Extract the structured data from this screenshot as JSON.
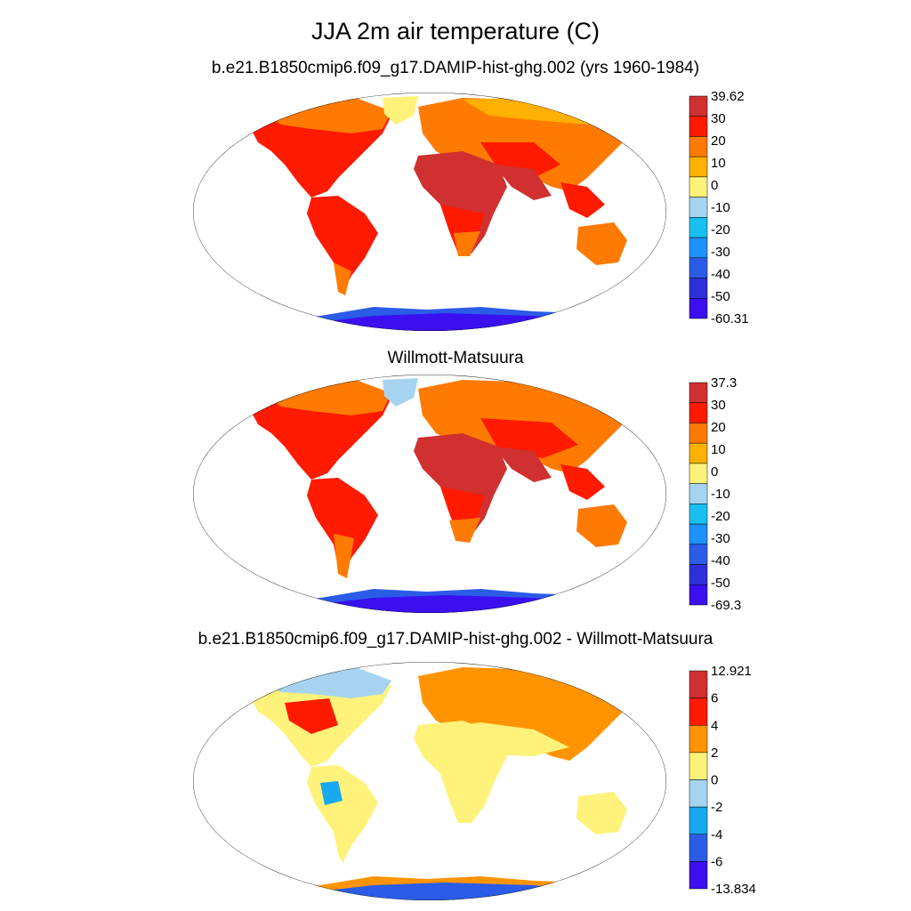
{
  "title": "JJA 2m air temperature (C)",
  "panels": [
    {
      "subtitle": "b.e21.B1850cmip6.f09_g17.DAMIP-hist-ghg.002 (yrs 1960-1984)",
      "legend": {
        "labels": [
          "39.62",
          "30",
          "20",
          "10",
          "0",
          "-10",
          "-20",
          "-30",
          "-40",
          "-50",
          "-60.31"
        ],
        "colors": [
          "#d03030",
          "#ff1a00",
          "#ff7a00",
          "#ffb000",
          "#fff27a",
          "#a6d4f0",
          "#17c0f0",
          "#1e90ff",
          "#2a5ce8",
          "#3030d8",
          "#3a10f0"
        ]
      }
    },
    {
      "subtitle": "Willmott-Matsuura",
      "legend": {
        "labels": [
          "37.3",
          "30",
          "20",
          "10",
          "0",
          "-10",
          "-20",
          "-30",
          "-40",
          "-50",
          "-69.3"
        ],
        "colors": [
          "#d03030",
          "#ff1a00",
          "#ff7a00",
          "#ffb000",
          "#fff27a",
          "#a6d4f0",
          "#17c0f0",
          "#1e90ff",
          "#2a5ce8",
          "#3030d8",
          "#3a10f0"
        ]
      }
    },
    {
      "subtitle": "b.e21.B1850cmip6.f09_g17.DAMIP-hist-ghg.002 - Willmott-Matsuura",
      "legend": {
        "labels": [
          "12.921",
          "6",
          "4",
          "2",
          "0",
          "-2",
          "-4",
          "-6",
          "-13.834"
        ],
        "colors": [
          "#d03030",
          "#ff1a00",
          "#ff9400",
          "#fff27a",
          "#a6d4f0",
          "#17a8f0",
          "#2a5ce8",
          "#3a10f0"
        ]
      }
    }
  ]
}
